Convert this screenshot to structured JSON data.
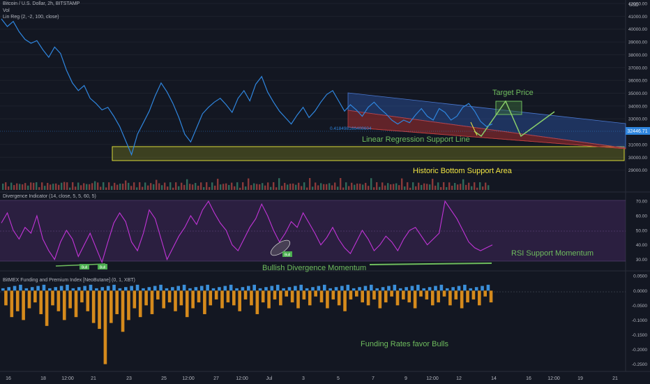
{
  "header": {
    "symbol": "Bitcoin / U.S. Dollar, 2h, BITSTAMP",
    "vol": "Vol",
    "linreg": "Lin Reg (2, -2, 100, close)"
  },
  "price_pane": {
    "currency": "USD",
    "current_price": "32446.71",
    "fib_label": "0.418498166408604",
    "annotations": {
      "target_price": "Target Price",
      "linear_regression": "Linear Regression Support Line",
      "historic_bottom": "Historic Bottom Support Area"
    }
  },
  "rsi_pane": {
    "title": "Divergence Indicator (14, close, 5, 5, 60, 5)",
    "bull_label": "Bull",
    "annotations": {
      "rsi_support": "RSI Support Momentum",
      "bullish_divergence": "Bullish Divergence Momentum"
    }
  },
  "funding_pane": {
    "title": "BitMEX Funding and Premium Index [NeoButane] (0, 1, XBT)",
    "annotation": "Funding Rates favor Bulls"
  },
  "time_axis": [
    "16",
    "18",
    "12:00",
    "21",
    "23",
    "25",
    "12:00",
    "27",
    "12:00",
    "Jul",
    "3",
    "5",
    "7",
    "9",
    "12:00",
    "12",
    "14",
    "16",
    "12:00",
    "19",
    "21"
  ],
  "colors": {
    "background": "#131722",
    "price_line": "#2f86df",
    "rsi_line": "#c234d8",
    "funding_positive": "#3b8fd9",
    "funding_negative": "#d58a1c",
    "annotation_green": "#6fbd5e",
    "annotation_yellow": "#f0e442",
    "channel_upper": "#2f5fb8",
    "channel_lower": "#b03030"
  },
  "chart_data": [
    {
      "type": "line",
      "title": "Bitcoin / U.S. Dollar, 2h, BITSTAMP",
      "ylabel": "USD",
      "ylim": [
        28000,
        42000
      ],
      "y_ticks": [
        "42000.00",
        "41000.00",
        "40000.00",
        "39000.00",
        "38000.00",
        "37000.00",
        "36000.00",
        "35000.00",
        "34000.00",
        "33000.00",
        "31000.00",
        "30000.00",
        "29000.00"
      ],
      "series": [
        {
          "name": "Bitcoin / U.S. Dollar",
          "values": [
            40800,
            40200,
            40600,
            39800,
            39200,
            38900,
            39100,
            38400,
            37800,
            38600,
            38100,
            36800,
            35800,
            35200,
            35600,
            34600,
            34200,
            33700,
            33900,
            33200,
            32400,
            31300,
            30200,
            31800,
            32700,
            33600,
            34800,
            35800,
            35100,
            34200,
            33100,
            31800,
            31200,
            32300,
            33400,
            33900,
            34300,
            34600,
            34100,
            33500,
            34600,
            35200,
            34400,
            35700,
            36300,
            35100,
            34300,
            33600,
            33100,
            32600,
            33300,
            33900,
            33100,
            33600,
            34300,
            34900,
            35200,
            34400,
            33600,
            34100,
            33700,
            33200,
            33900,
            34300,
            33800,
            33400,
            32900,
            32600,
            32900,
            32700,
            33300,
            33800,
            33200,
            32900,
            33800,
            33500,
            32900,
            33200,
            33900,
            34200,
            33600,
            32800,
            32400,
            32600
          ]
        }
      ]
    },
    {
      "type": "line",
      "title": "Divergence Indicator (14, close, 5, 5, 60, 5)",
      "ylim": [
        25,
        72
      ],
      "y_ticks": [
        "70.00",
        "60.00",
        "50.00",
        "40.00",
        "30.00"
      ],
      "series": [
        {
          "name": "Divergence Indicator",
          "values": [
            55,
            62,
            50,
            44,
            52,
            48,
            60,
            44,
            36,
            30,
            42,
            50,
            44,
            32,
            40,
            48,
            38,
            28,
            42,
            55,
            62,
            56,
            42,
            36,
            48,
            64,
            58,
            44,
            30,
            38,
            46,
            52,
            60,
            54,
            64,
            70,
            62,
            55,
            50,
            40,
            36,
            44,
            52,
            58,
            68,
            60,
            50,
            42,
            48,
            56,
            52,
            62,
            55,
            48,
            40,
            45,
            52,
            44,
            38,
            34,
            42,
            50,
            44,
            36,
            40,
            46,
            42,
            36,
            44,
            50,
            52,
            46,
            40,
            44,
            48,
            70,
            64,
            58,
            50,
            42,
            38,
            36,
            38,
            40
          ]
        }
      ]
    },
    {
      "type": "bar",
      "title": "BitMEX Funding and Premium Index [NeoButane] (0, 1, XBT)",
      "ylim": [
        -0.27,
        0.06
      ],
      "y_ticks": [
        "0.0500",
        "0.0000",
        "-0.0500",
        "-0.1000",
        "-0.1500",
        "-0.2000",
        "-0.2500"
      ],
      "series": [
        {
          "name": "Funding and Premium Index",
          "values": [
            -0.05,
            -0.09,
            -0.07,
            -0.1,
            -0.06,
            -0.04,
            -0.08,
            -0.12,
            -0.05,
            -0.07,
            -0.1,
            -0.06,
            -0.09,
            -0.04,
            -0.07,
            -0.11,
            -0.13,
            -0.25,
            -0.11,
            -0.08,
            -0.14,
            -0.1,
            -0.06,
            -0.09,
            -0.05,
            -0.08,
            -0.03,
            -0.06,
            -0.04,
            -0.07,
            -0.05,
            -0.09,
            -0.06,
            -0.04,
            -0.08,
            -0.05,
            -0.03,
            -0.06,
            -0.04,
            -0.05,
            -0.07,
            -0.03,
            -0.05,
            -0.08,
            -0.04,
            -0.06,
            -0.03,
            -0.05,
            -0.02,
            -0.04,
            -0.06,
            -0.03,
            -0.05,
            -0.02,
            -0.04,
            -0.06,
            -0.03,
            -0.05,
            -0.07,
            -0.03,
            -0.02,
            -0.04,
            -0.05,
            -0.03,
            -0.06,
            -0.04,
            -0.02,
            -0.05,
            -0.03,
            -0.04,
            -0.06,
            -0.02,
            -0.03,
            -0.05,
            -0.04,
            -0.02,
            -0.05,
            -0.03,
            -0.06,
            -0.04,
            -0.03,
            -0.05,
            -0.02,
            -0.04
          ]
        }
      ]
    }
  ]
}
